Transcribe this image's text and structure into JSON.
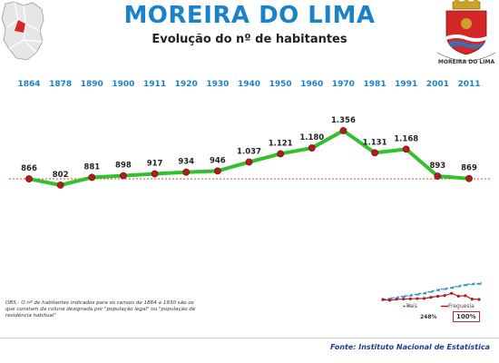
{
  "header": {
    "title": "MOREIRA DO LIMA",
    "subtitle": "Evolução do nº de habitantes",
    "crest_text": "MOREIRA DO LIMA"
  },
  "chart_data": {
    "type": "line",
    "title": "Evolução do nº de habitantes",
    "categories": [
      "1864",
      "1878",
      "1890",
      "1900",
      "1911",
      "1920",
      "1930",
      "1940",
      "1950",
      "1960",
      "1970",
      "1981",
      "1991",
      "2001",
      "2011"
    ],
    "values": [
      866,
      802,
      881,
      898,
      917,
      934,
      946,
      1037,
      1121,
      1180,
      1356,
      1131,
      1168,
      893,
      869
    ],
    "value_labels": [
      "866",
      "802",
      "881",
      "898",
      "917",
      "934",
      "946",
      "1.037",
      "1.121",
      "1.180",
      "1.356",
      "1.131",
      "1.168",
      "893",
      "869"
    ],
    "reference_line": 866,
    "grid": false,
    "colors": {
      "line": "#33c12b",
      "marker": "#b01c1c",
      "reference": "#d42828",
      "year_labels": "#1a82c8"
    }
  },
  "note": "OBS.: O nº de habitantes indicados para os censos de 1864 a 1930 são os que constam da coluna designada por \"população legal\" ou \"população de residência habitual\"",
  "mini_legend": {
    "pais_label": "País",
    "freguesia_label": "Freguesia",
    "pais_pct": "248%",
    "freguesia_pct": "100%",
    "pais_color": "#2f8fd6",
    "freguesia_color": "#b01c1c"
  },
  "source": "Fonte: Instituto Nacional de Estatística"
}
